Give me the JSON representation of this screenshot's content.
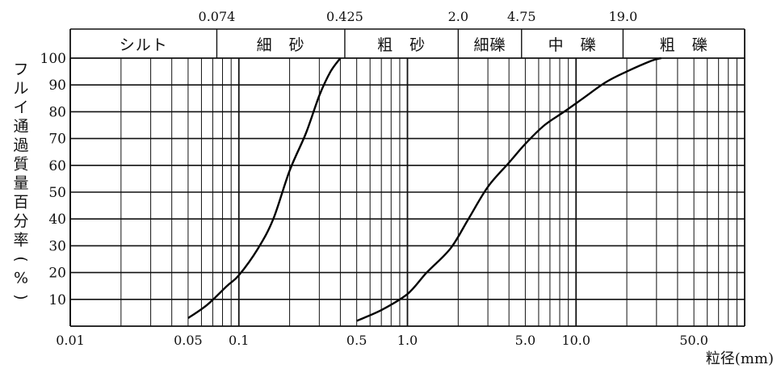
{
  "chart_data": {
    "type": "line",
    "title": "",
    "xlabel": "粒径(mm)",
    "ylabel": "フルイ通過質量百分率(%)",
    "x_scale": "log",
    "xlim": [
      0.01,
      100
    ],
    "ylim": [
      0,
      100
    ],
    "grid": true,
    "x_ticklabels": [
      {
        "value": 0.01,
        "label": "0.01"
      },
      {
        "value": 0.05,
        "label": "0.05"
      },
      {
        "value": 0.1,
        "label": "0.1"
      },
      {
        "value": 0.5,
        "label": "0.5"
      },
      {
        "value": 1.0,
        "label": "1.0"
      },
      {
        "value": 5.0,
        "label": "5.0"
      },
      {
        "value": 10.0,
        "label": "10.0"
      },
      {
        "value": 50.0,
        "label": "50.0"
      }
    ],
    "y_ticks": [
      10,
      20,
      30,
      40,
      50,
      60,
      70,
      80,
      90,
      100
    ],
    "boundaries": [
      {
        "value": 0.074,
        "label": "0.074"
      },
      {
        "value": 0.425,
        "label": "0.425"
      },
      {
        "value": 2.0,
        "label": "2.0"
      },
      {
        "value": 4.75,
        "label": "4.75"
      },
      {
        "value": 19.0,
        "label": "19.0"
      }
    ],
    "categories": [
      {
        "label": "シルト",
        "from": 0.01,
        "to": 0.074
      },
      {
        "label": "細　砂",
        "from": 0.074,
        "to": 0.425
      },
      {
        "label": "粗　砂",
        "from": 0.425,
        "to": 2.0
      },
      {
        "label": "細礫",
        "from": 2.0,
        "to": 4.75
      },
      {
        "label": "中　礫",
        "from": 4.75,
        "to": 19.0
      },
      {
        "label": "粗　礫",
        "from": 19.0,
        "to": 100
      }
    ],
    "series": [
      {
        "points": [
          [
            0.05,
            3
          ],
          [
            0.065,
            8
          ],
          [
            0.085,
            15
          ],
          [
            0.1,
            19
          ],
          [
            0.13,
            29
          ],
          [
            0.16,
            40
          ],
          [
            0.2,
            58
          ],
          [
            0.25,
            72
          ],
          [
            0.3,
            86
          ],
          [
            0.35,
            95
          ],
          [
            0.4,
            100
          ]
        ]
      },
      {
        "points": [
          [
            0.5,
            2
          ],
          [
            0.7,
            6
          ],
          [
            1.0,
            12
          ],
          [
            1.3,
            20
          ],
          [
            1.8,
            29
          ],
          [
            2.3,
            40
          ],
          [
            3.0,
            52
          ],
          [
            4.0,
            61
          ],
          [
            5.0,
            68
          ],
          [
            6.5,
            75
          ],
          [
            8.5,
            80
          ],
          [
            11.0,
            85
          ],
          [
            15.0,
            91
          ],
          [
            20.0,
            95
          ],
          [
            28.0,
            99
          ],
          [
            32.0,
            100
          ]
        ]
      }
    ]
  }
}
